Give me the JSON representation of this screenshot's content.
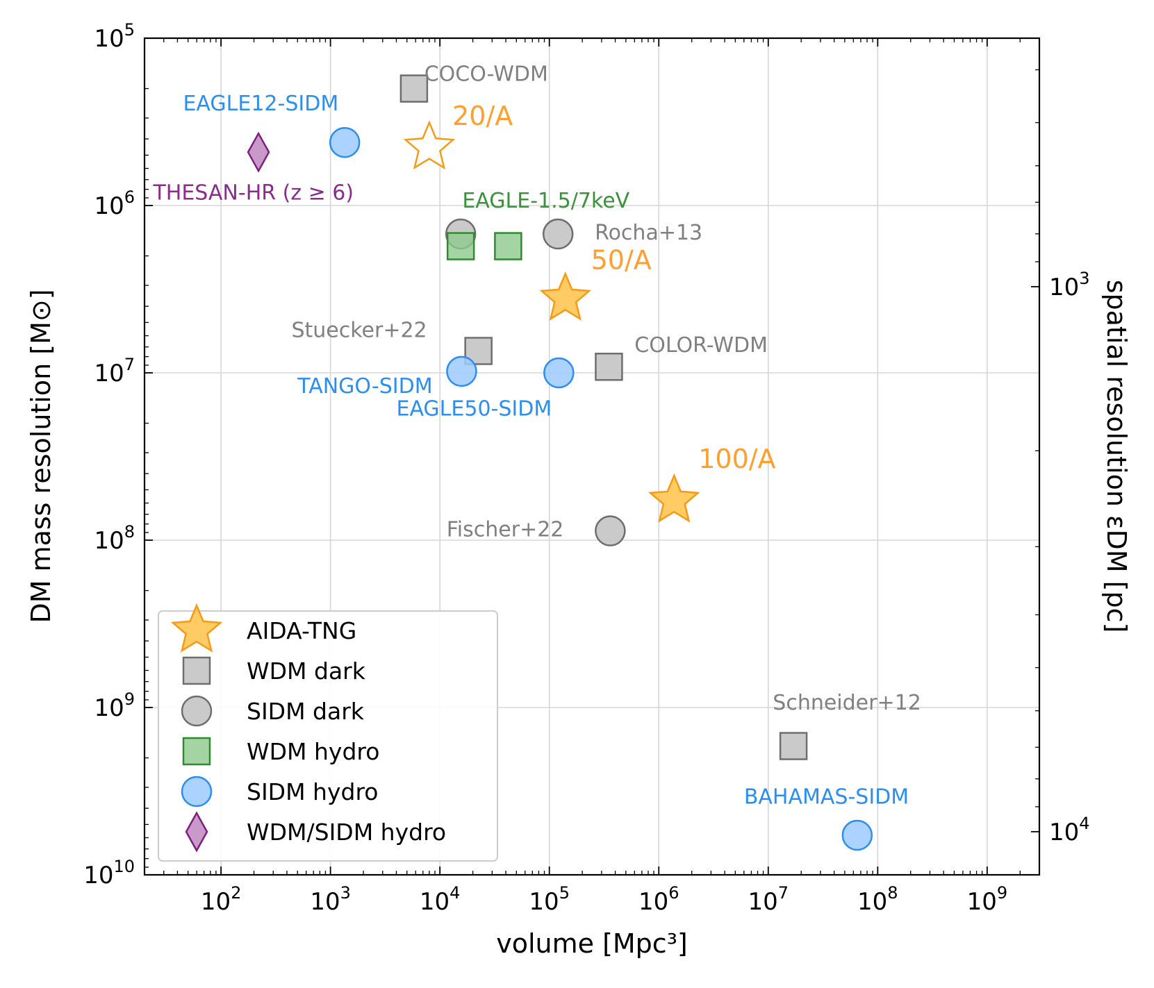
{
  "chart_data": {
    "type": "scatter",
    "xscale": "log",
    "yscale": "log",
    "y_inverted": true,
    "xlim": [
      20,
      3000000000
    ],
    "ylim": [
      100000,
      10000000000
    ],
    "y2lim_pc": [
      12000,
      350
    ],
    "xlabel": "volume [Mpc³]",
    "ylabel": "DM mass resolution [M⊙]",
    "y2label": "spatial resolution εDM [pc]",
    "grid": true,
    "x_ticks": [
      {
        "value": 100,
        "base": "10",
        "exp": "2"
      },
      {
        "value": 1000,
        "base": "10",
        "exp": "3"
      },
      {
        "value": 10000,
        "base": "10",
        "exp": "4"
      },
      {
        "value": 100000,
        "base": "10",
        "exp": "5"
      },
      {
        "value": 1000000,
        "base": "10",
        "exp": "6"
      },
      {
        "value": 10000000,
        "base": "10",
        "exp": "7"
      },
      {
        "value": 100000000,
        "base": "10",
        "exp": "8"
      },
      {
        "value": 1000000000,
        "base": "10",
        "exp": "9"
      }
    ],
    "y_ticks": [
      {
        "value": 100000,
        "base": "10",
        "exp": "5"
      },
      {
        "value": 1000000,
        "base": "10",
        "exp": "6"
      },
      {
        "value": 10000000,
        "base": "10",
        "exp": "7"
      },
      {
        "value": 100000000,
        "base": "10",
        "exp": "8"
      },
      {
        "value": 1000000000,
        "base": "10",
        "exp": "9"
      },
      {
        "value": 10000000000,
        "base": "10",
        "exp": "10"
      }
    ],
    "y2_ticks": [
      {
        "value": 1000,
        "base": "10",
        "exp": "3"
      },
      {
        "value": 10000,
        "base": "10",
        "exp": "4"
      }
    ],
    "legend": {
      "placement": "lower-left",
      "entries": [
        {
          "label": "AIDA-TNG",
          "marker": "star",
          "category": "aida"
        },
        {
          "label": "WDM dark",
          "marker": "square",
          "category": "wdm_dark"
        },
        {
          "label": "SIDM dark",
          "marker": "circle",
          "category": "sidm_dark"
        },
        {
          "label": "WDM hydro",
          "marker": "square",
          "category": "wdm_hydro"
        },
        {
          "label": "SIDM hydro",
          "marker": "circle",
          "category": "sidm_hydro"
        },
        {
          "label": "WDM/SIDM hydro",
          "marker": "diamond",
          "category": "mixed_hydro"
        }
      ]
    },
    "styles": {
      "aida": {
        "fill": "#ffc24a",
        "stroke": "#f79a14",
        "opacity": 0.85
      },
      "wdm_dark": {
        "fill": "#c4c4c4",
        "stroke": "#6e6e6e",
        "opacity": 0.9
      },
      "sidm_dark": {
        "fill": "#c4c4c4",
        "stroke": "#6e6e6e",
        "opacity": 0.9
      },
      "wdm_hydro": {
        "fill": "#8dc98d",
        "stroke": "#2e8b2e",
        "opacity": 0.8
      },
      "sidm_hydro": {
        "fill": "#9ecbff",
        "stroke": "#2c8ef0",
        "opacity": 0.85
      },
      "mixed_hydro": {
        "fill": "#c38ec3",
        "stroke": "#7d1f7d",
        "opacity": 0.9
      }
    },
    "label_colors": {
      "orange": "#ff9f2e",
      "gray": "#808080",
      "blue": "#2a8ff0",
      "green": "#3a923a",
      "purple": "#8b2b8b"
    },
    "points": [
      {
        "x": 5800,
        "y": 200000,
        "marker": "square",
        "category": "wdm_dark"
      },
      {
        "x": 1350,
        "y": 420000,
        "marker": "circle",
        "category": "sidm_hydro"
      },
      {
        "x": 8000,
        "y": 450000,
        "marker": "star",
        "category": "aida",
        "hollow": true
      },
      {
        "x": 220,
        "y": 480000,
        "marker": "diamond",
        "category": "mixed_hydro"
      },
      {
        "x": 15500,
        "y": 1480000,
        "marker": "circle",
        "category": "sidm_dark"
      },
      {
        "x": 120000,
        "y": 1480000,
        "marker": "circle",
        "category": "sidm_dark"
      },
      {
        "x": 15500,
        "y": 1750000,
        "marker": "square",
        "category": "wdm_hydro"
      },
      {
        "x": 42000,
        "y": 1750000,
        "marker": "square",
        "category": "wdm_hydro"
      },
      {
        "x": 140000,
        "y": 3600000,
        "marker": "star",
        "category": "aida"
      },
      {
        "x": 22500,
        "y": 7400000,
        "marker": "square",
        "category": "wdm_dark"
      },
      {
        "x": 15800,
        "y": 9800000,
        "marker": "circle",
        "category": "sidm_hydro"
      },
      {
        "x": 122000,
        "y": 10000000,
        "marker": "circle",
        "category": "sidm_hydro"
      },
      {
        "x": 350000,
        "y": 9200000,
        "marker": "square",
        "category": "wdm_dark"
      },
      {
        "x": 1380000,
        "y": 58000000,
        "marker": "star",
        "category": "aida"
      },
      {
        "x": 360000,
        "y": 88000000,
        "marker": "circle",
        "category": "sidm_dark"
      },
      {
        "x": 17000000,
        "y": 1700000000,
        "marker": "square",
        "category": "wdm_dark"
      },
      {
        "x": 65000000,
        "y": 5800000000,
        "marker": "circle",
        "category": "sidm_hydro"
      }
    ],
    "annotations": [
      {
        "text": "COCO-WDM",
        "x": 7200,
        "y": 180000,
        "color": "gray",
        "size": 30,
        "anchor": "start"
      },
      {
        "text": "EAGLE12-SIDM",
        "x": 45,
        "y": 270000,
        "color": "blue",
        "size": 30,
        "anchor": "start"
      },
      {
        "text": "20/A",
        "x": 13000,
        "y": 330000,
        "color": "orange",
        "size": 38,
        "anchor": "start"
      },
      {
        "text": "THESAN-HR (z ≥ 6)",
        "x": 24,
        "y": 920000,
        "color": "purple",
        "size": 30,
        "anchor": "start"
      },
      {
        "text": "EAGLE-1.5/7keV",
        "x": 16000,
        "y": 1030000,
        "color": "green",
        "size": 30,
        "anchor": "start"
      },
      {
        "text": "Rocha+13",
        "x": 260000,
        "y": 1600000,
        "color": "gray",
        "size": 30,
        "anchor": "start"
      },
      {
        "text": "50/A",
        "x": 240000,
        "y": 2400000,
        "color": "orange",
        "size": 38,
        "anchor": "start"
      },
      {
        "text": "Stuecker+22",
        "x": 440,
        "y": 6100000,
        "color": "gray",
        "size": 30,
        "anchor": "start"
      },
      {
        "text": "COLOR-WDM",
        "x": 600000,
        "y": 7500000,
        "color": "gray",
        "size": 30,
        "anchor": "start"
      },
      {
        "text": "TANGO-SIDM",
        "x": 500,
        "y": 13200000,
        "color": "blue",
        "size": 30,
        "anchor": "start"
      },
      {
        "text": "EAGLE50-SIDM",
        "x": 4000,
        "y": 18000000,
        "color": "blue",
        "size": 30,
        "anchor": "start"
      },
      {
        "text": "100/A",
        "x": 2300000,
        "y": 37000000,
        "color": "orange",
        "size": 38,
        "anchor": "start"
      },
      {
        "text": "Fischer+22",
        "x": 11500,
        "y": 95000000,
        "color": "gray",
        "size": 30,
        "anchor": "start"
      },
      {
        "text": "Schneider+12",
        "x": 11000000,
        "y": 1030000000,
        "color": "gray",
        "size": 30,
        "anchor": "start"
      },
      {
        "text": "BAHAMAS-SIDM",
        "x": 6000000,
        "y": 3750000000,
        "color": "blue",
        "size": 30,
        "anchor": "start"
      }
    ]
  }
}
